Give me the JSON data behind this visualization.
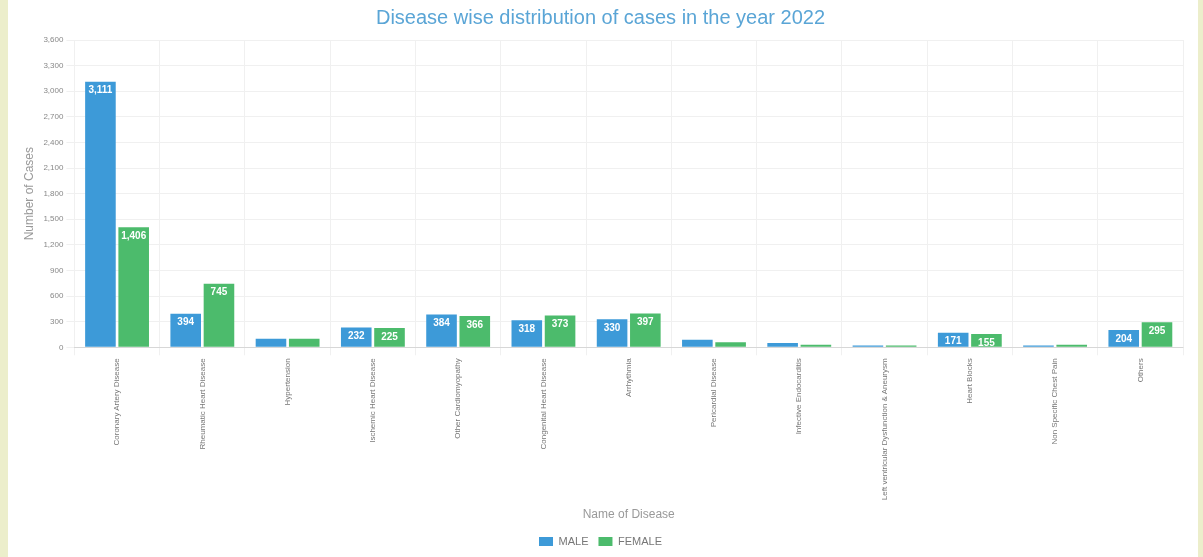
{
  "chart_data": {
    "type": "bar",
    "title": "Disease wise distribution of cases in the year 2022",
    "xlabel": "Name of Disease",
    "ylabel": "Number of Cases",
    "categories": [
      "Coronary Artery Disease",
      "Rheumatic Heart Disease",
      "Hypertension",
      "Ischemic Heart Disease",
      "Other Cardiomyopathy",
      "Congenital Heart Disease",
      "Arrhythmia",
      "Pericardial Disease",
      "Infective Endocarditis",
      "Left ventricular Dysfunction & Aneurysm",
      "Heart Blocks",
      "Non Specific Chest Pain",
      "Others"
    ],
    "series": [
      {
        "name": "MALE",
        "color": "#3d9ad8",
        "values": [
          3111,
          394,
          100,
          232,
          384,
          318,
          330,
          90,
          50,
          20,
          171,
          20,
          204
        ],
        "value_labels": [
          "3,111",
          "394",
          null,
          "232",
          "384",
          "318",
          "330",
          null,
          null,
          null,
          "171",
          null,
          "204"
        ]
      },
      {
        "name": "FEMALE",
        "color": "#4cbb6c",
        "values": [
          1406,
          745,
          100,
          225,
          366,
          373,
          397,
          60,
          30,
          20,
          155,
          30,
          295
        ],
        "value_labels": [
          "1,406",
          "745",
          null,
          "225",
          "366",
          "373",
          "397",
          null,
          null,
          null,
          "155",
          null,
          "295"
        ]
      }
    ],
    "ylim": [
      0,
      3600
    ],
    "yticks": [
      {
        "value": 0,
        "label": "0"
      },
      {
        "value": 300,
        "label": "300"
      },
      {
        "value": 600,
        "label": "600"
      },
      {
        "value": 900,
        "label": "900"
      },
      {
        "value": 1200,
        "label": "1,200"
      },
      {
        "value": 1500,
        "label": "1,500"
      },
      {
        "value": 1800,
        "label": "1,800"
      },
      {
        "value": 2100,
        "label": "2,100"
      },
      {
        "value": 2400,
        "label": "2,400"
      },
      {
        "value": 2700,
        "label": "2,700"
      },
      {
        "value": 3000,
        "label": "3,000"
      },
      {
        "value": 3300,
        "label": "3,300"
      },
      {
        "value": 3600,
        "label": "3,600"
      }
    ],
    "grid": true,
    "legend": "bottom"
  }
}
